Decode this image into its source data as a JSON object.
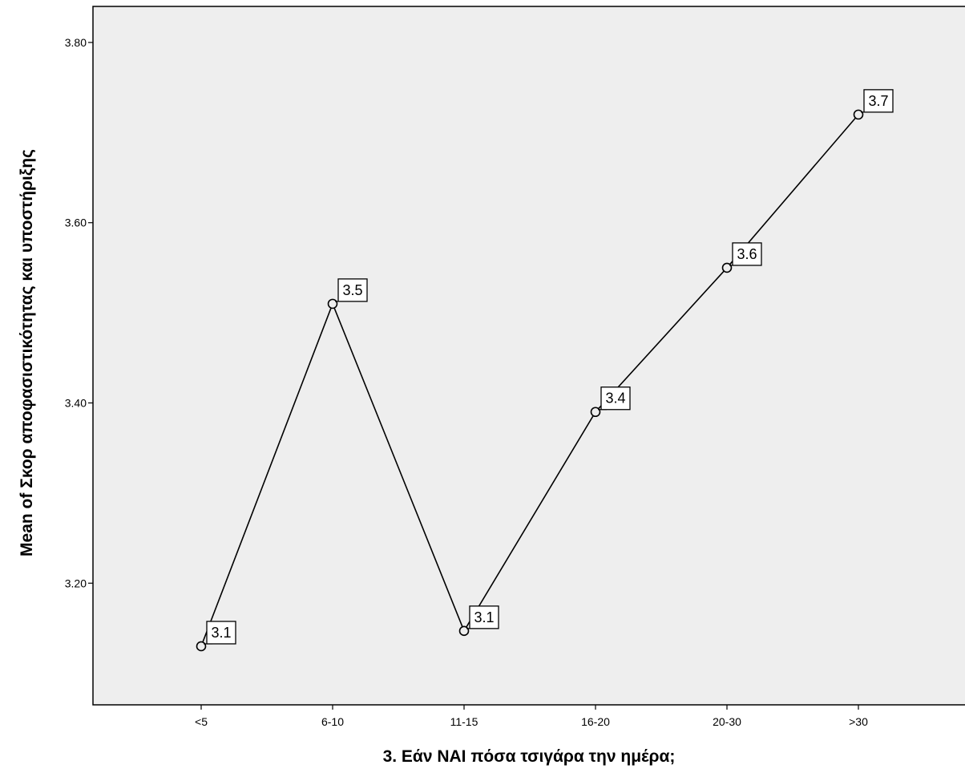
{
  "chart_data": {
    "type": "line",
    "title": "",
    "xlabel": "3. Εάν ΝΑΙ πόσα τσιγάρα την ημέρα;",
    "ylabel": "Mean of Σκορ αποφασιστικότητας και υποστήριξης",
    "categories": [
      "<5",
      "6-10",
      "11-15",
      "16-20",
      "20-30",
      ">30"
    ],
    "series": [
      {
        "values": [
          3.13,
          3.51,
          3.147,
          3.39,
          3.55,
          3.72
        ],
        "data_labels": [
          "3.1",
          "3.5",
          "3.1",
          "3.4",
          "3.6",
          "3.7"
        ]
      }
    ],
    "y_ticks": [
      3.2,
      3.4,
      3.6,
      3.8
    ],
    "y_tick_labels": [
      "3.20",
      "3.40",
      "3.60",
      "3.80"
    ],
    "ylim": [
      3.065,
      3.84
    ],
    "grid": false,
    "legend": "none",
    "colors": {
      "plot_background": "#eeeeee",
      "page_background": "#ffffff",
      "line": "#000000",
      "marker_fill": "#eeeeee",
      "label_box_fill": "#ffffff"
    }
  }
}
